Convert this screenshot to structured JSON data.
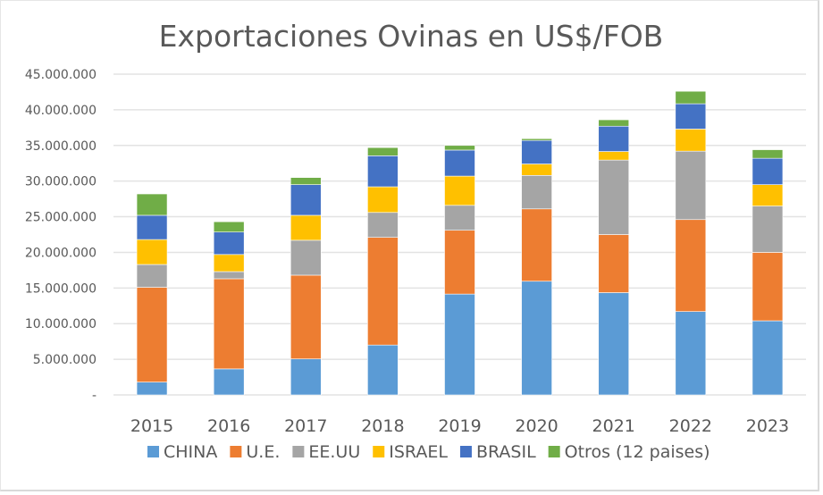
{
  "chart_data": {
    "type": "bar",
    "stacked": true,
    "title": "Exportaciones Ovinas en US$/FOB",
    "xlabel": "",
    "ylabel": "",
    "categories": [
      "2015",
      "2016",
      "2017",
      "2018",
      "2019",
      "2020",
      "2021",
      "2022",
      "2023"
    ],
    "ylim": [
      0,
      45000000
    ],
    "yticks": [
      0,
      5000000,
      10000000,
      15000000,
      20000000,
      25000000,
      30000000,
      35000000,
      40000000,
      45000000
    ],
    "ytick_labels": [
      "-",
      "5.000.000",
      "10.000.000",
      "15.000.000",
      "20.000.000",
      "25.000.000",
      "30.000.000",
      "35.000.000",
      "40.000.000",
      "45.000.000"
    ],
    "grid": true,
    "legend_position": "bottom",
    "series": [
      {
        "name": "CHINA",
        "color": "#5b9bd5",
        "values": [
          1800000,
          3650000,
          5050000,
          7000000,
          14150000,
          15950000,
          14350000,
          11700000,
          10400000
        ]
      },
      {
        "name": "U.E.",
        "color": "#ed7d31",
        "values": [
          13300000,
          12650000,
          11750000,
          15100000,
          8950000,
          10150000,
          8150000,
          12900000,
          9600000
        ]
      },
      {
        "name": "EE.UU",
        "color": "#a5a5a5",
        "values": [
          3200000,
          1000000,
          4900000,
          3500000,
          3500000,
          4700000,
          10450000,
          9600000,
          6500000
        ]
      },
      {
        "name": "ISRAEL",
        "color": "#ffc000",
        "values": [
          3500000,
          2400000,
          3500000,
          3600000,
          4100000,
          1600000,
          1200000,
          3100000,
          3000000
        ]
      },
      {
        "name": "BRASIL",
        "color": "#4472c4",
        "values": [
          3400000,
          3150000,
          4300000,
          4350000,
          3650000,
          3300000,
          3550000,
          3550000,
          3700000
        ]
      },
      {
        "name": "Otros (12 paises)",
        "color": "#70ad47",
        "values": [
          3000000,
          1450000,
          1000000,
          1150000,
          650000,
          250000,
          900000,
          1750000,
          1200000
        ]
      }
    ]
  }
}
